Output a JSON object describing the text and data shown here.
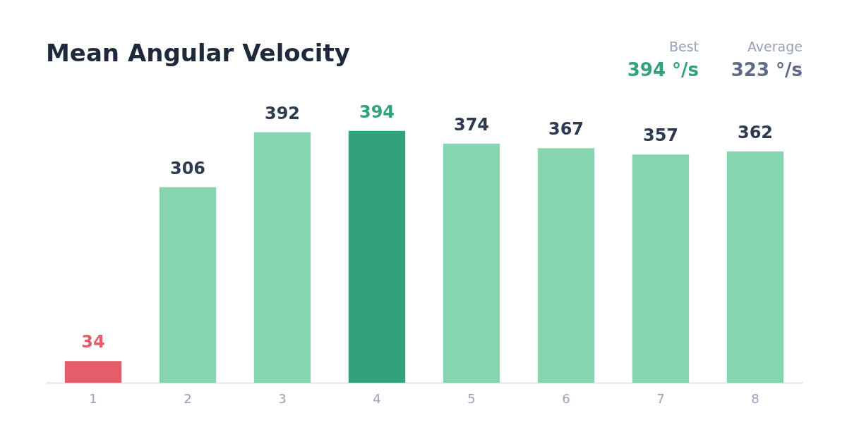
{
  "chart_data": {
    "type": "bar",
    "title": "Mean Angular Velocity",
    "categories": [
      "1",
      "2",
      "3",
      "4",
      "5",
      "6",
      "7",
      "8"
    ],
    "values": [
      34,
      306,
      392,
      394,
      374,
      367,
      357,
      362
    ],
    "colors": [
      "#e35d6a",
      "#86d4b0",
      "#86d4b0",
      "#31a27a",
      "#86d4b0",
      "#86d4b0",
      "#86d4b0",
      "#86d4b0"
    ],
    "data_labels": true,
    "grid": false,
    "annotations": [
      "Best",
      "394 °/s",
      "Average",
      "323 °/s"
    ]
  }
}
